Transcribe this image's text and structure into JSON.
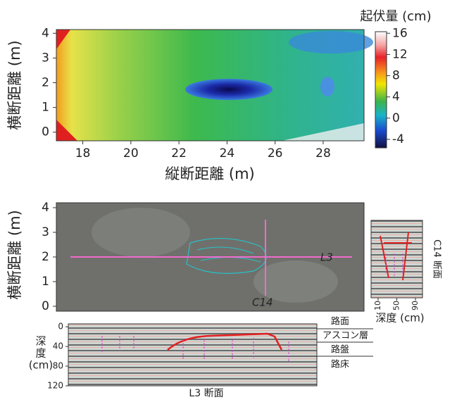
{
  "chart_data": [
    {
      "type": "heatmap",
      "xlabel": "縦断距離 (m)",
      "ylabel": "横断距離 (m)",
      "xlim": [
        16.9,
        29.7
      ],
      "xticks": [
        18,
        20,
        22,
        24,
        26,
        28
      ],
      "ylim": [
        -0.35,
        4.15
      ],
      "yticks": [
        0,
        1,
        2,
        3,
        4
      ],
      "colorbar": {
        "title": "起伏量 (cm)",
        "lim": [
          -5.6,
          16.3
        ],
        "ticks": [
          16,
          12,
          8,
          4,
          0,
          -4
        ]
      }
    },
    {
      "type": "image",
      "ylabel": "横断距離 (m)",
      "ylim": [
        -0.2,
        4.2
      ],
      "yticks": [
        0,
        1,
        2,
        3,
        4
      ],
      "annotations": [
        "L3",
        "C14"
      ]
    },
    {
      "type": "section",
      "title": "C14 断面",
      "xlabel": "深度 (cm)",
      "xlim": [
        -5,
        105
      ],
      "xticks": [
        10,
        50,
        90
      ]
    },
    {
      "type": "section",
      "title": "L3 断面",
      "ylabel": [
        "深",
        "度",
        "(cm)"
      ],
      "ylim": [
        -6,
        120
      ],
      "yticks": [
        0,
        40,
        80,
        120
      ],
      "layers": [
        "路面",
        "アスコン層",
        "路盤",
        "路床"
      ]
    }
  ]
}
